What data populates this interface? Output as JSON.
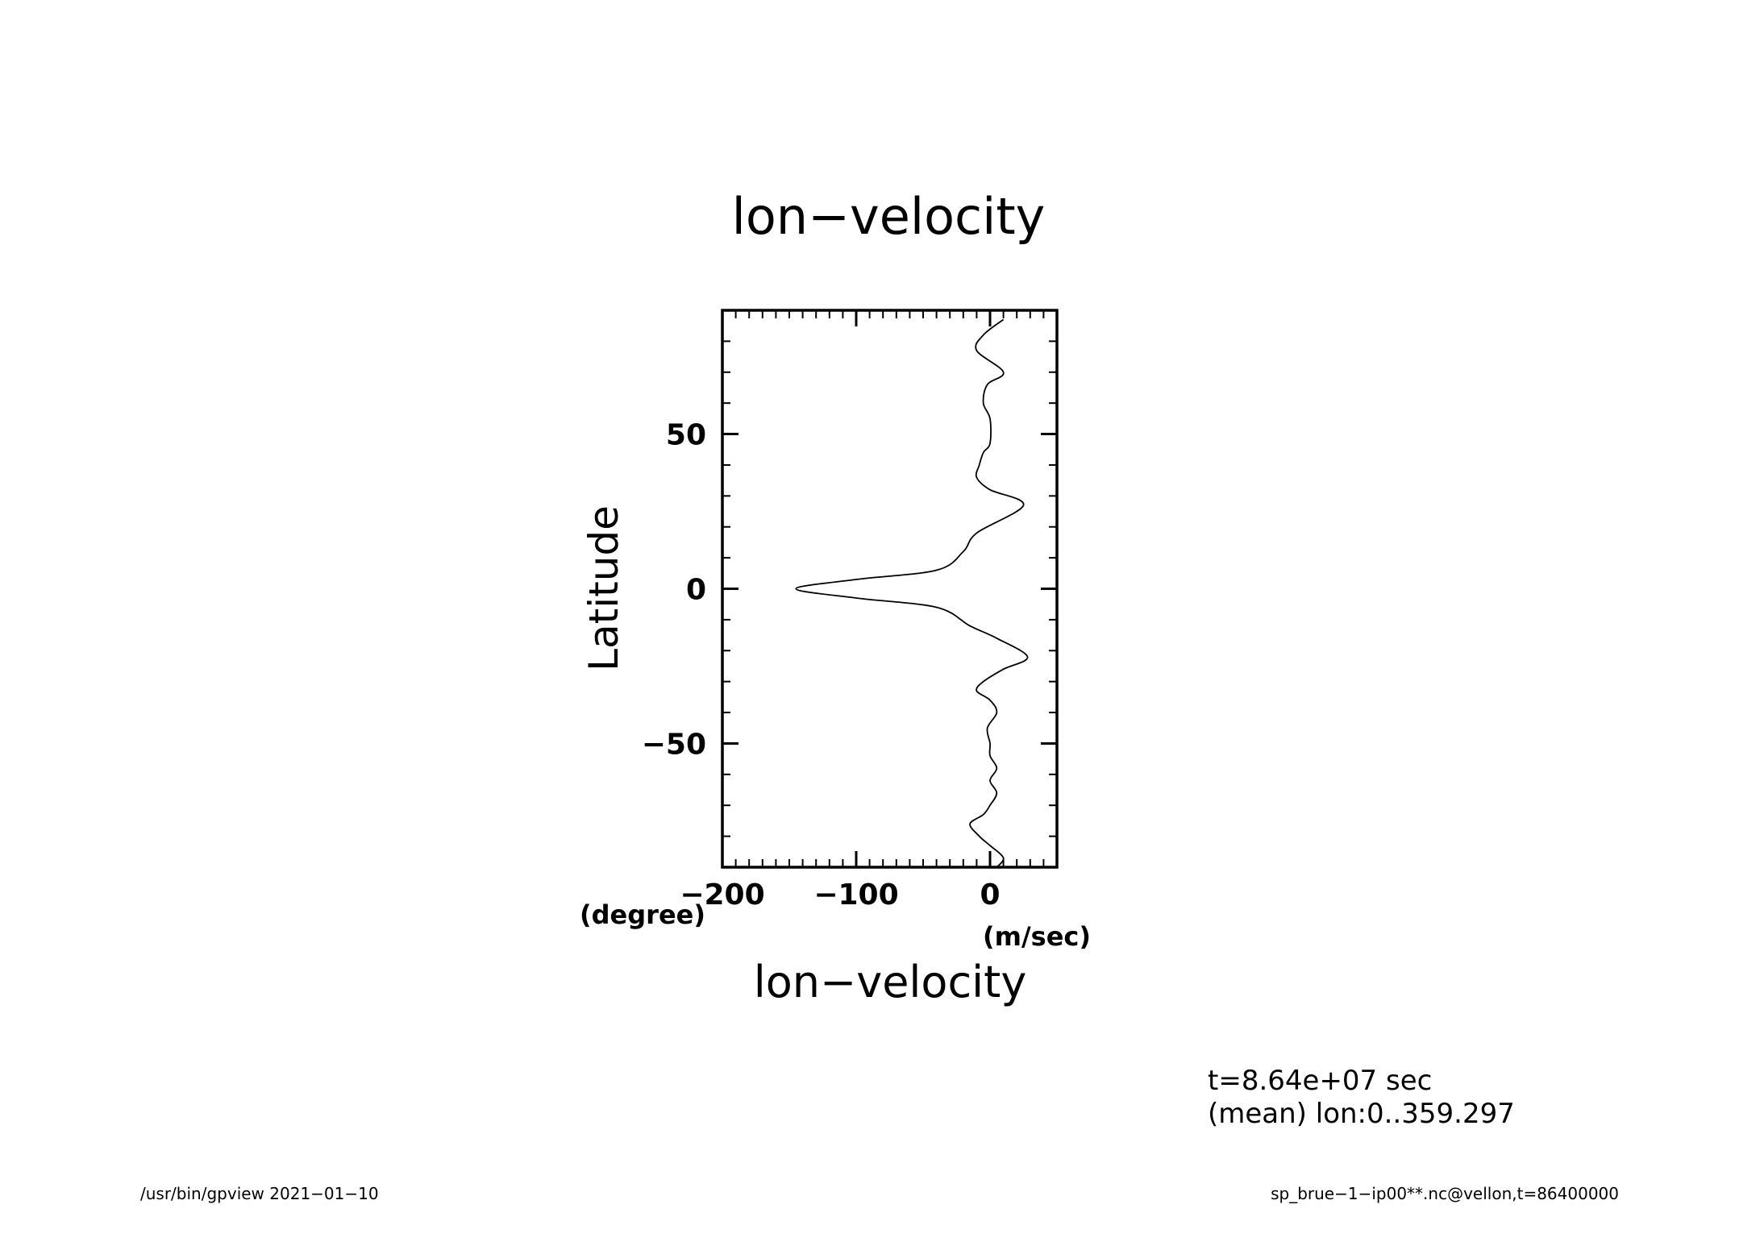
{
  "chart_data": {
    "type": "line",
    "title": "lon−velocity",
    "xlabel": "lon−velocity",
    "ylabel": "Latitude",
    "x_unit": "(m/sec)",
    "y_unit": "(degree)",
    "xlim": [
      -200,
      50
    ],
    "ylim": [
      -90,
      90
    ],
    "xticks": [
      -200,
      -100,
      0
    ],
    "xtick_labels": [
      "−200",
      "−100",
      "0"
    ],
    "yticks": [
      -50,
      0,
      50
    ],
    "ytick_labels": [
      "−50",
      "0",
      "50"
    ],
    "grid": false,
    "series": [
      {
        "x": [
          5,
          10,
          0,
          -8,
          -15,
          -5,
          0,
          5,
          0,
          5,
          0,
          0,
          -2,
          5,
          0,
          -10,
          -5,
          10,
          28,
          5,
          -15,
          -40,
          -100,
          -145,
          -100,
          -40,
          -20,
          -10,
          25,
          0,
          -10,
          -8,
          -5,
          0,
          0,
          -5,
          -2,
          10,
          -10,
          -5,
          10
        ],
        "y": [
          -90,
          -87,
          -83,
          -80,
          -76,
          -73,
          -70,
          -66,
          -62,
          -58,
          -54,
          -50,
          -45,
          -40,
          -36,
          -33,
          -30,
          -26,
          -22,
          -16,
          -12,
          -6,
          -3,
          0,
          3,
          6,
          12,
          18,
          27,
          32,
          36,
          40,
          44,
          47,
          55,
          60,
          66,
          70,
          77,
          82,
          87
        ]
      }
    ]
  },
  "annotations": {
    "time": "t=8.64e+07 sec",
    "mean": "(mean) lon:0..359.297"
  },
  "footer": {
    "left": "/usr/bin/gpview   2021−01−10",
    "right": "sp_brue−1−ip00**.nc@vellon,t=86400000"
  }
}
